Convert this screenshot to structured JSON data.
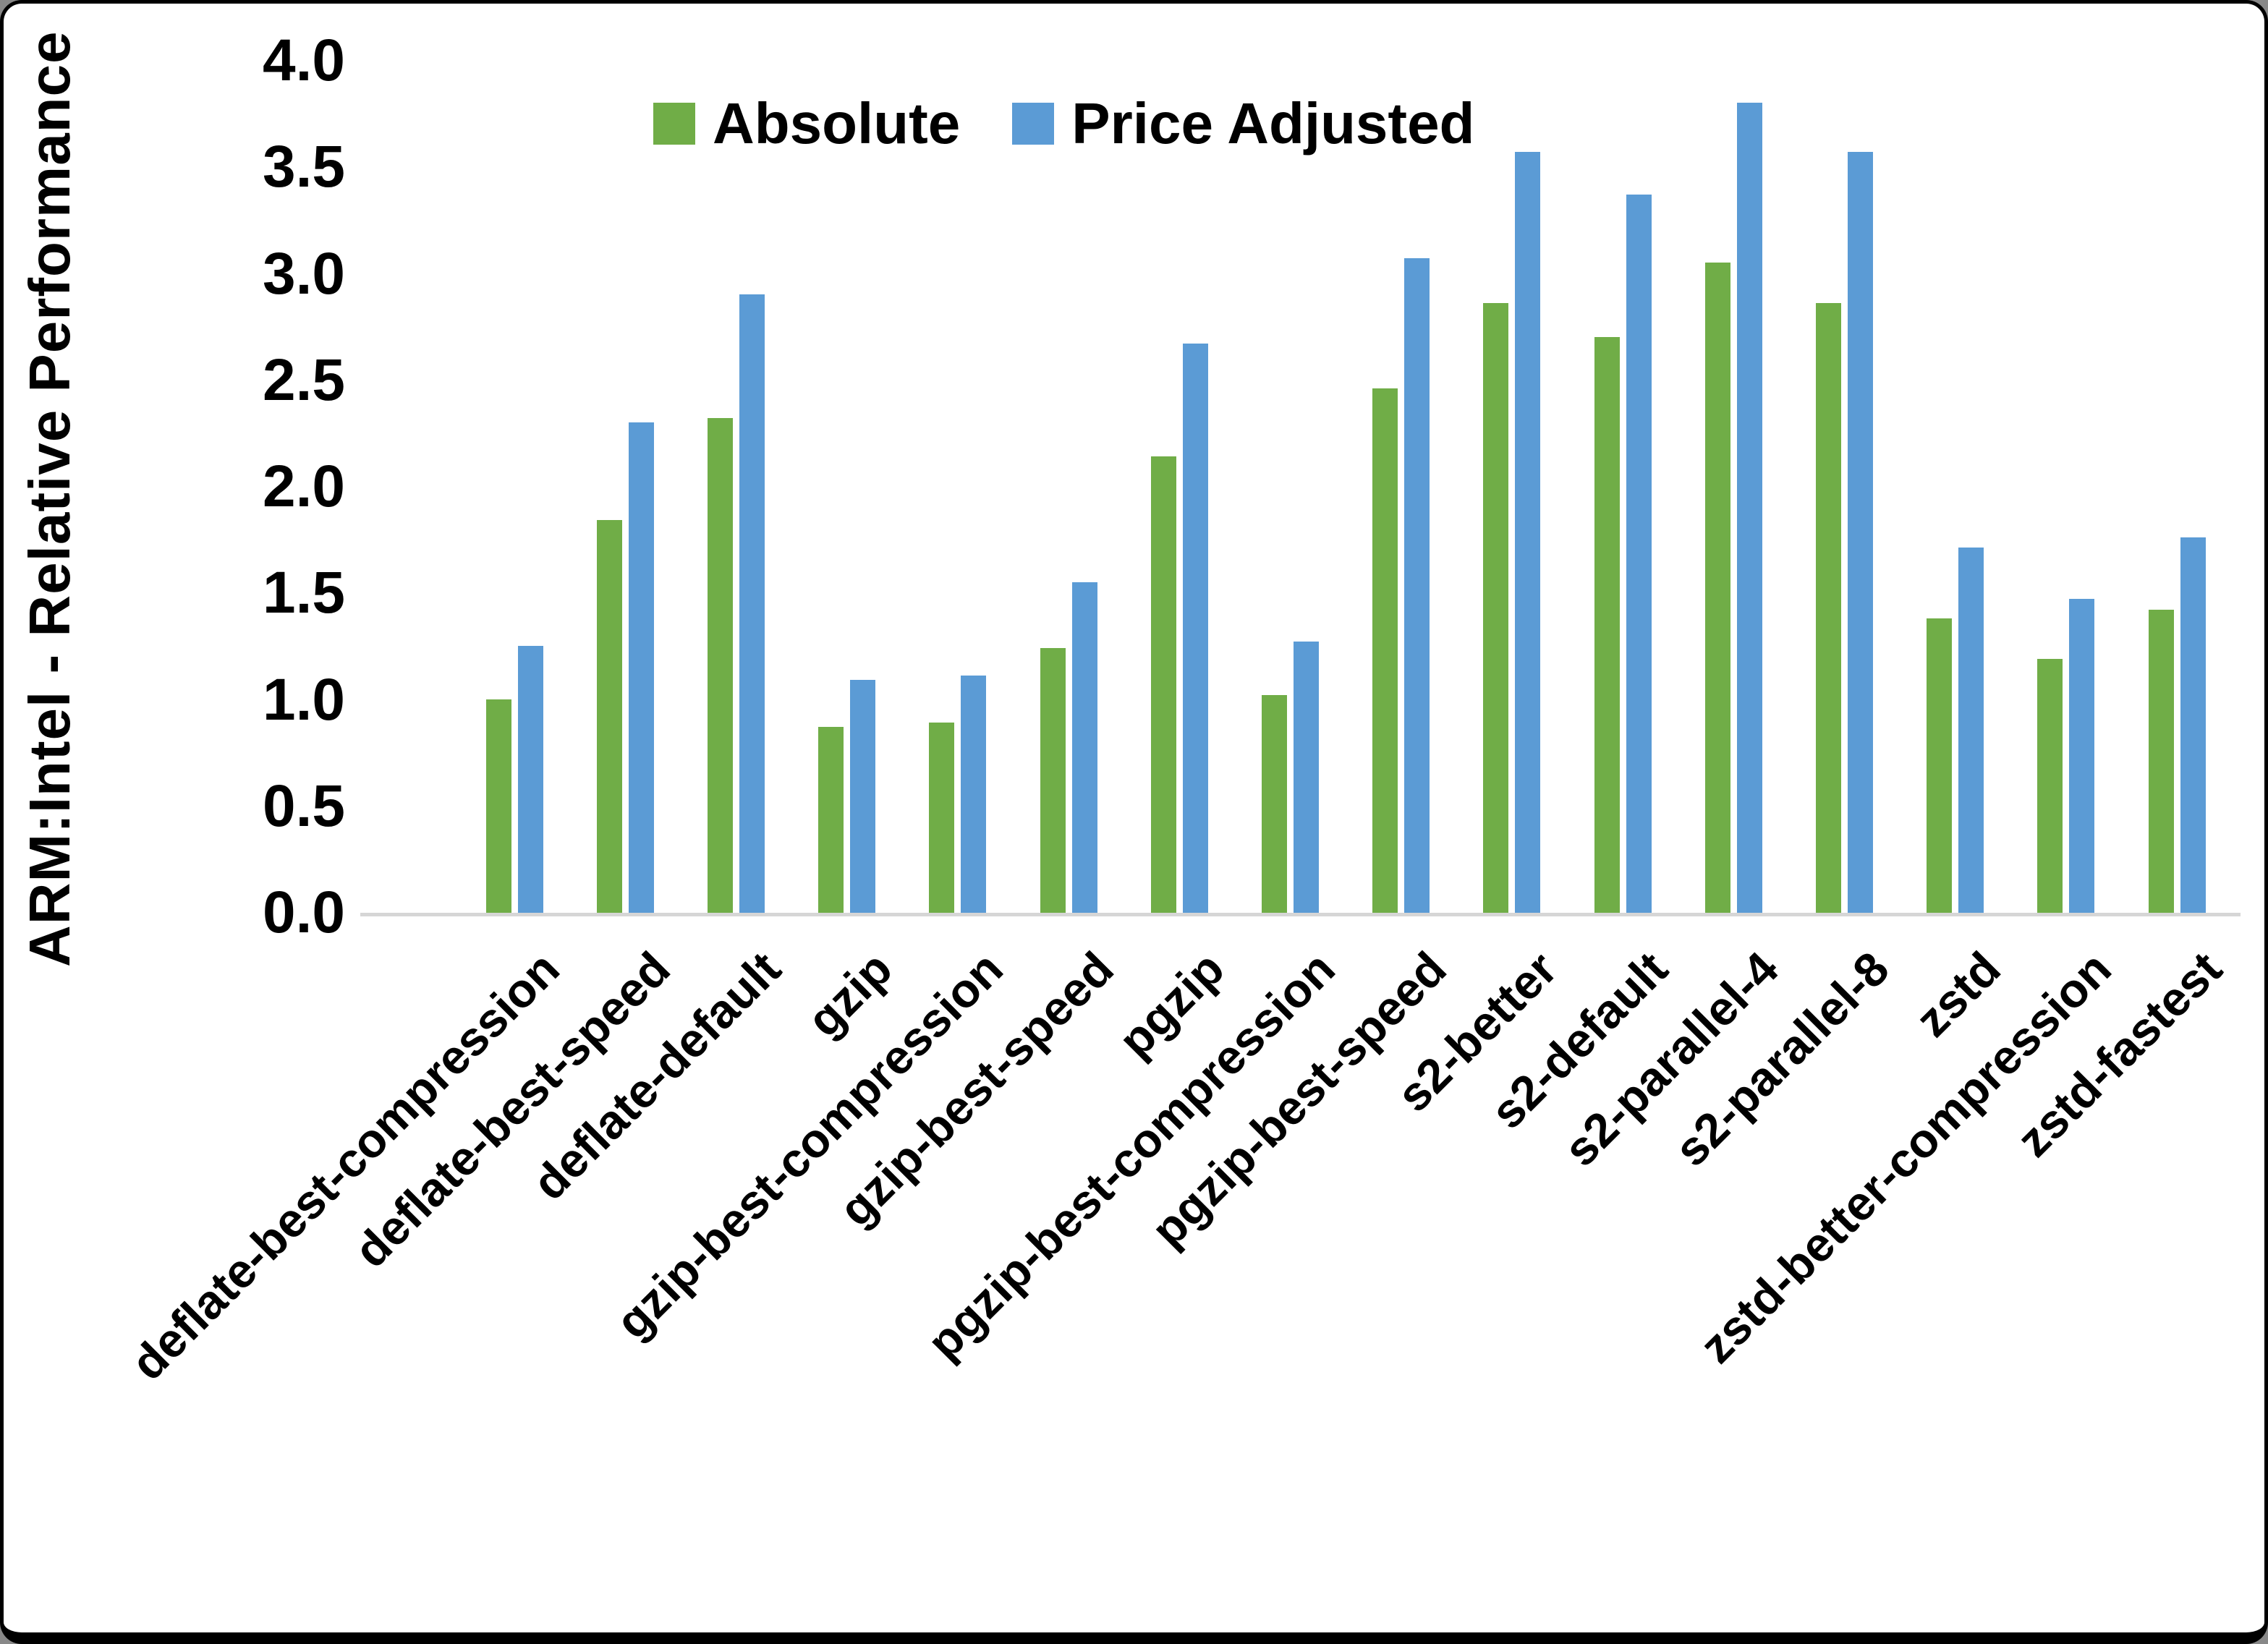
{
  "figure": {
    "background": "#ffffff",
    "border_color": "#000000",
    "axis_line_color": "#d6d6d6",
    "text_color": "#000000"
  },
  "chart_data": {
    "type": "bar",
    "title": "",
    "xlabel": "",
    "ylabel": "ARM:Intel - Relative Performance",
    "ylim": [
      0.0,
      4.0
    ],
    "ytick_step": 0.5,
    "yticks": [
      "4.0",
      "3.5",
      "3.0",
      "2.5",
      "2.0",
      "1.5",
      "1.0",
      "0.5",
      "0.0"
    ],
    "grid": false,
    "legend_position": "top-center",
    "categories": [
      "deflate-best-compression",
      "deflate-best-speed",
      "deflate-default",
      "gzip",
      "gzip-best-compression",
      "gzip-best-speed",
      "pgzip",
      "pgzip-best-compression",
      "pgzip-best-speed",
      "s2-better",
      "s2-default",
      "s2-parallel-4",
      "s2-parallel-8",
      "zstd",
      "zstd-better-compression",
      "zstd-fastest"
    ],
    "series": [
      {
        "name": "Absolute",
        "color": "#70AD47",
        "values": [
          1.01,
          1.85,
          2.33,
          0.88,
          0.9,
          1.25,
          2.15,
          1.03,
          2.47,
          2.87,
          2.71,
          3.06,
          2.87,
          1.39,
          1.2,
          1.43
        ]
      },
      {
        "name": "Price Adjusted",
        "color": "#5B9BD5",
        "values": [
          1.26,
          2.31,
          2.91,
          1.1,
          1.12,
          1.56,
          2.68,
          1.28,
          3.08,
          3.58,
          3.38,
          3.81,
          3.58,
          1.72,
          1.48,
          1.77
        ]
      }
    ]
  }
}
